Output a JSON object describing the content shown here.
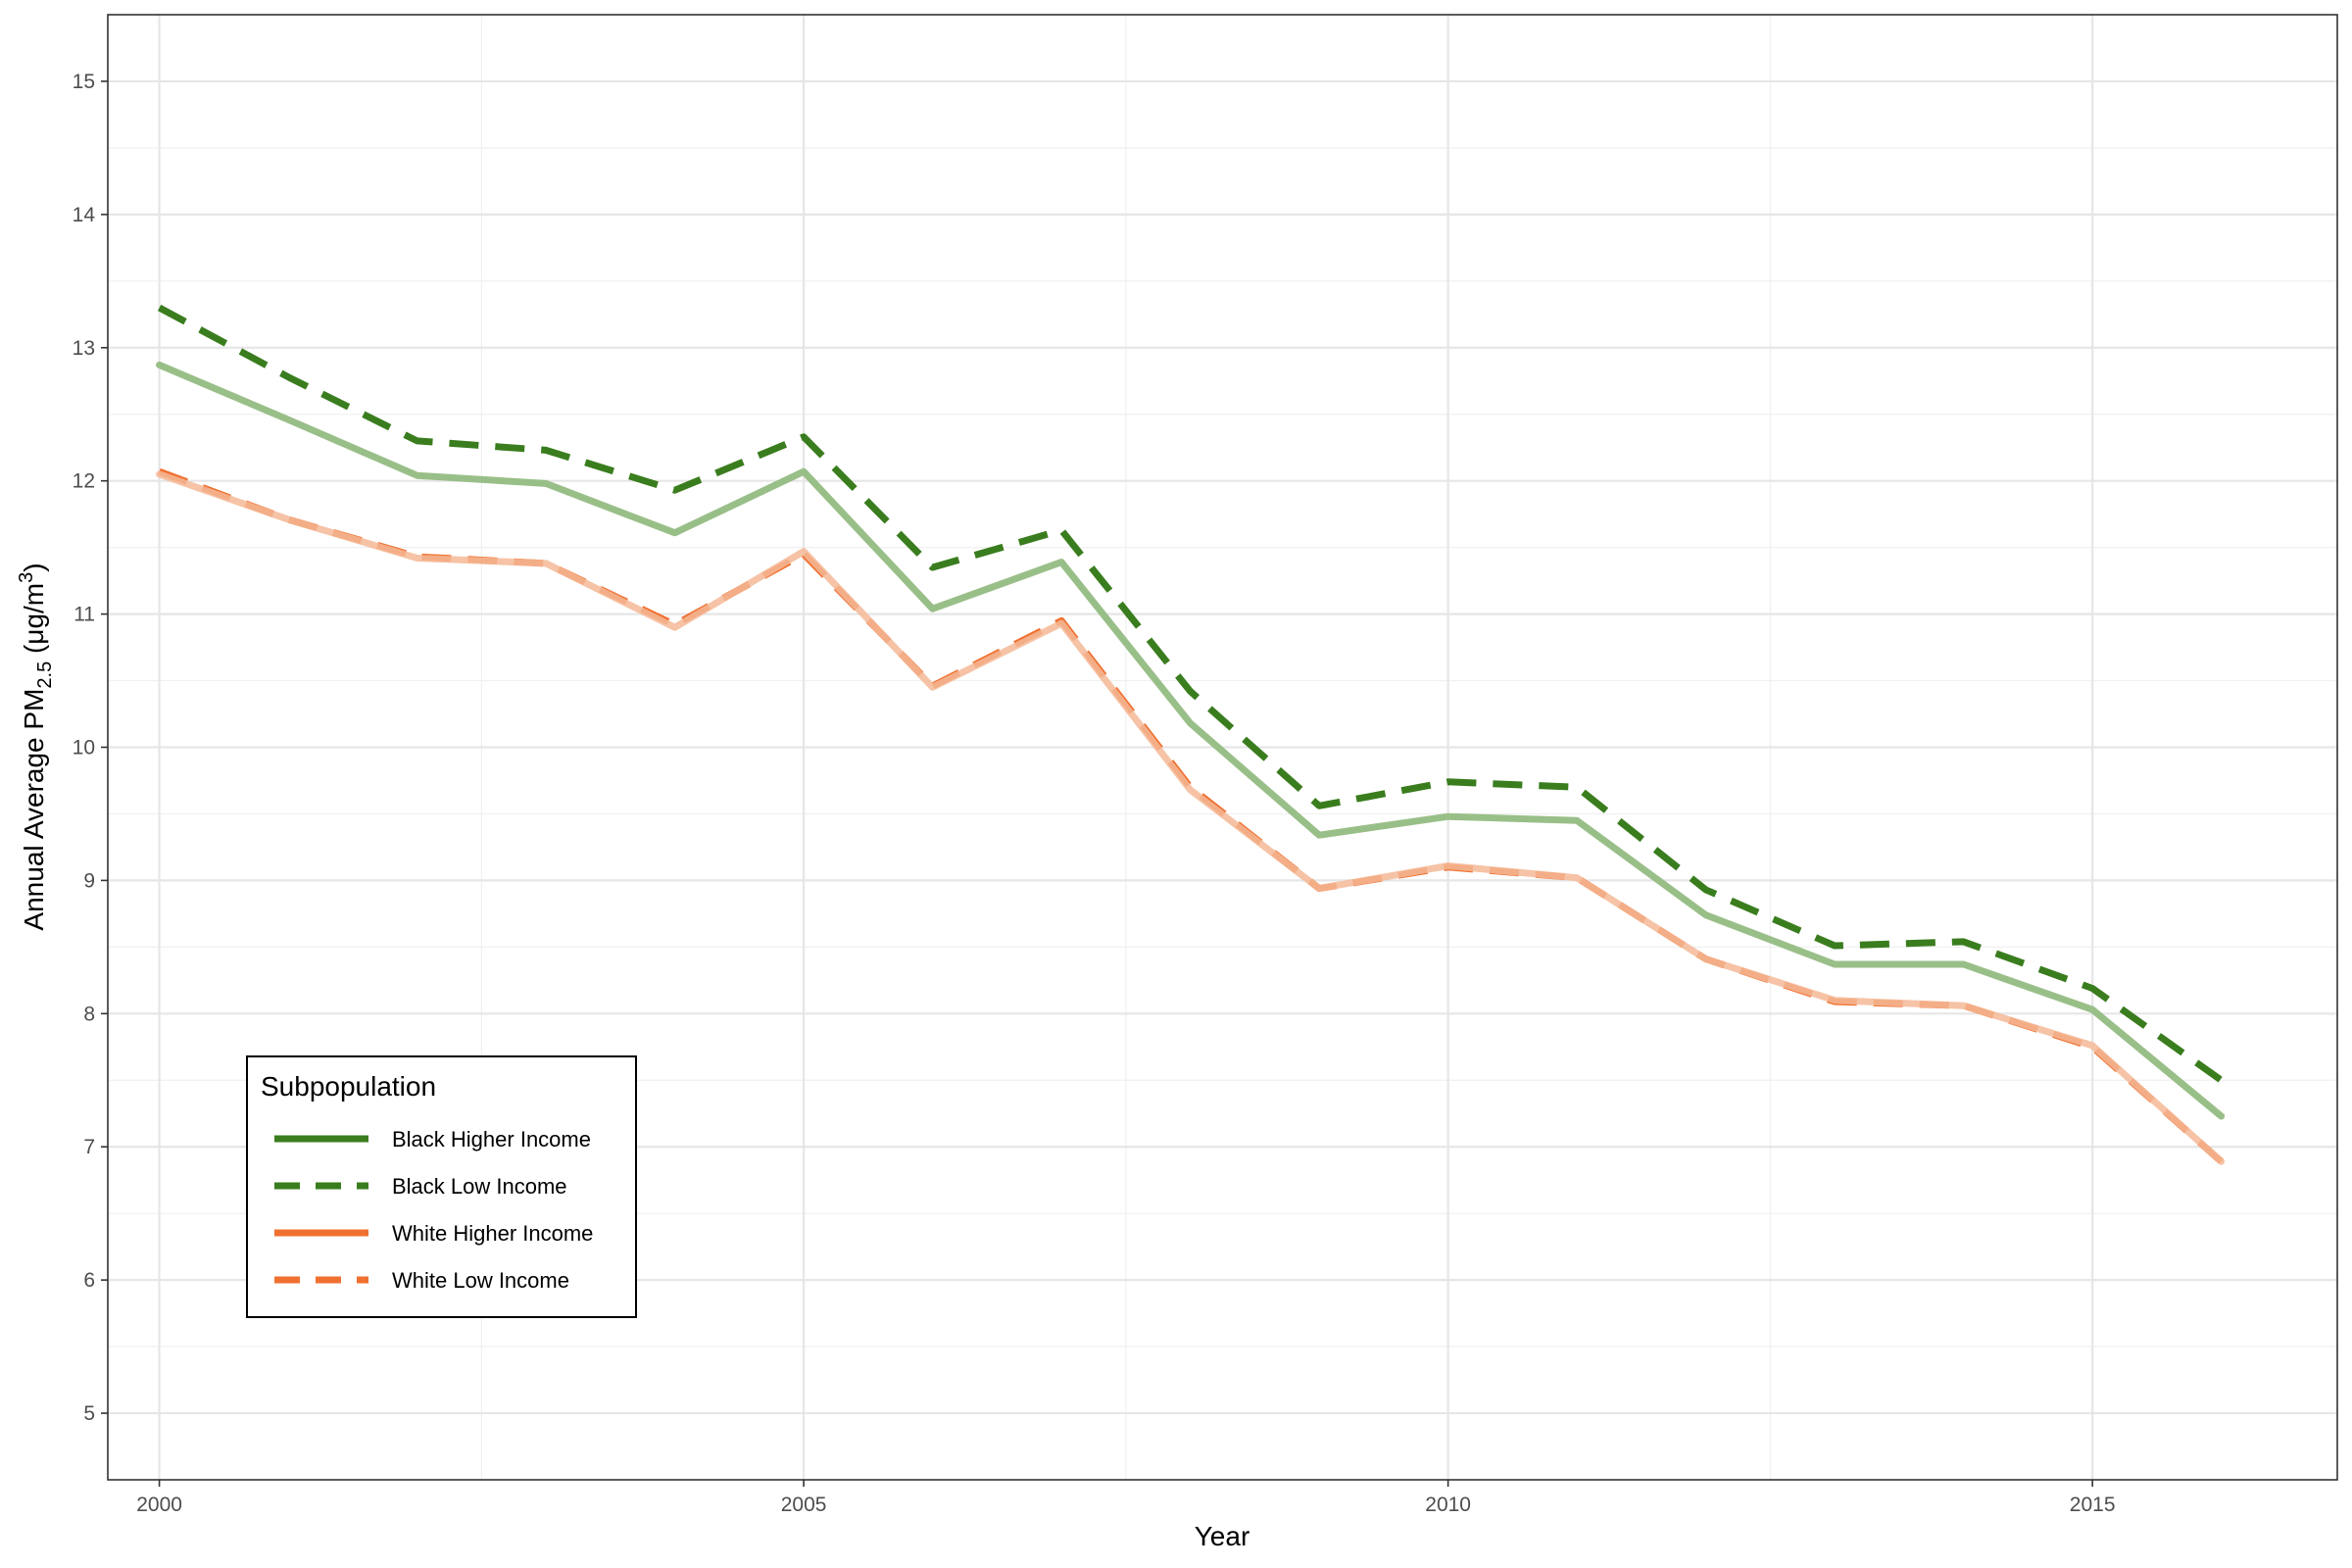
{
  "chart_data": {
    "type": "line",
    "xlabel": "Year",
    "ylabel": {
      "prefix": "Annual Average PM",
      "subscript": "2.5",
      "unit_open": " (μg/m",
      "superscript": "3",
      "unit_close": ")"
    },
    "xlim": [
      1999.6,
      2016.9
    ],
    "ylim": [
      4.5,
      15.5
    ],
    "x_ticks": [
      2000,
      2005,
      2010,
      2015
    ],
    "x_tick_labels": [
      "2000",
      "2005",
      "2010",
      "2015"
    ],
    "y_ticks": [
      5,
      6,
      7,
      8,
      9,
      10,
      11,
      12,
      13,
      14,
      15
    ],
    "y_tick_labels": [
      "5",
      "6",
      "7",
      "8",
      "9",
      "10",
      "11",
      "12",
      "13",
      "14",
      "15"
    ],
    "grid": true,
    "legend": {
      "title": "Subpopulation",
      "placement": "bottom-left",
      "entries": [
        {
          "label": "Black Higher Income",
          "color": "#3a7d1e",
          "dash": "solid"
        },
        {
          "label": "Black Low Income",
          "color": "#3a7d1e",
          "dash": "dashed"
        },
        {
          "label": "White Higher Income",
          "color": "#f07030",
          "dash": "solid"
        },
        {
          "label": "White Low Income",
          "color": "#f07030",
          "dash": "dashed"
        }
      ]
    },
    "x": [
      2000,
      2001,
      2002,
      2003,
      2004,
      2005,
      2006,
      2007,
      2008,
      2009,
      2010,
      2011,
      2012,
      2013,
      2014,
      2015,
      2016
    ],
    "series": [
      {
        "name": "Black Low Income",
        "color": "#3a7d1e",
        "dash": "dashed",
        "opacity": 1,
        "values": [
          13.3,
          12.78,
          12.3,
          12.23,
          11.93,
          12.33,
          11.35,
          11.63,
          10.42,
          9.56,
          9.74,
          9.7,
          8.93,
          8.51,
          8.54,
          8.19,
          7.5
        ]
      },
      {
        "name": "Black Higher Income",
        "color": "#99bf88",
        "dash": "solid",
        "opacity": 1,
        "values": [
          12.87,
          12.46,
          12.04,
          11.98,
          11.61,
          12.07,
          11.04,
          11.39,
          10.18,
          9.34,
          9.48,
          9.45,
          8.74,
          8.37,
          8.37,
          8.03,
          7.23
        ]
      },
      {
        "name": "White Low Income",
        "color": "#f07030",
        "dash": "dashed",
        "opacity": 1,
        "values": [
          12.07,
          11.71,
          11.43,
          11.38,
          10.92,
          11.45,
          10.46,
          10.95,
          9.7,
          8.94,
          9.1,
          9.02,
          8.41,
          8.09,
          8.06,
          7.75,
          6.89
        ]
      },
      {
        "name": "White Higher Income",
        "color": "#f5b896",
        "dash": "solid",
        "opacity": 0.85,
        "values": [
          12.05,
          11.71,
          11.42,
          11.38,
          10.9,
          11.47,
          10.45,
          10.93,
          9.68,
          8.94,
          9.11,
          9.02,
          8.41,
          8.1,
          8.06,
          7.76,
          6.89
        ]
      }
    ]
  }
}
